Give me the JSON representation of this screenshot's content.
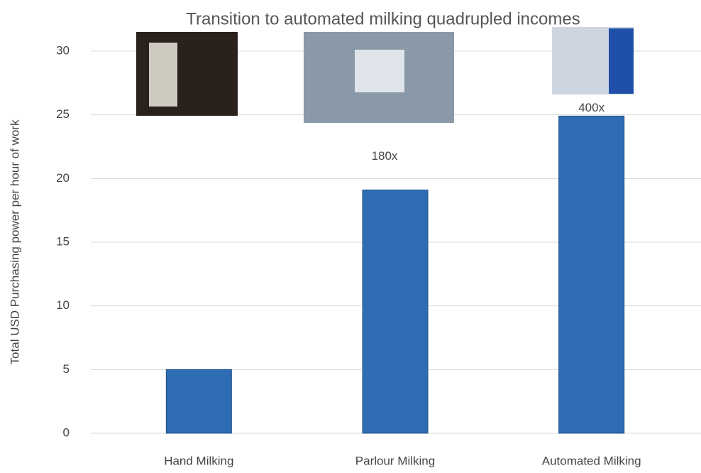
{
  "chart_data": {
    "type": "bar",
    "title": "Transition to automated milking quadrupled incomes",
    "y_label": "Total USD Purchasing power per hour of work",
    "categories": [
      "Hand Milking",
      "Parlour Milking",
      "Automated Milking"
    ],
    "values": [
      5,
      19.1,
      24.9
    ],
    "color": "#2e6db4",
    "ylim": [
      0,
      30
    ],
    "yticks": [
      0,
      5,
      10,
      15,
      20,
      25,
      30
    ],
    "grid": true,
    "annotations": [
      {
        "category": "Parlour Milking",
        "text": "180x"
      },
      {
        "category": "Automated Milking",
        "text": "400x"
      }
    ]
  }
}
